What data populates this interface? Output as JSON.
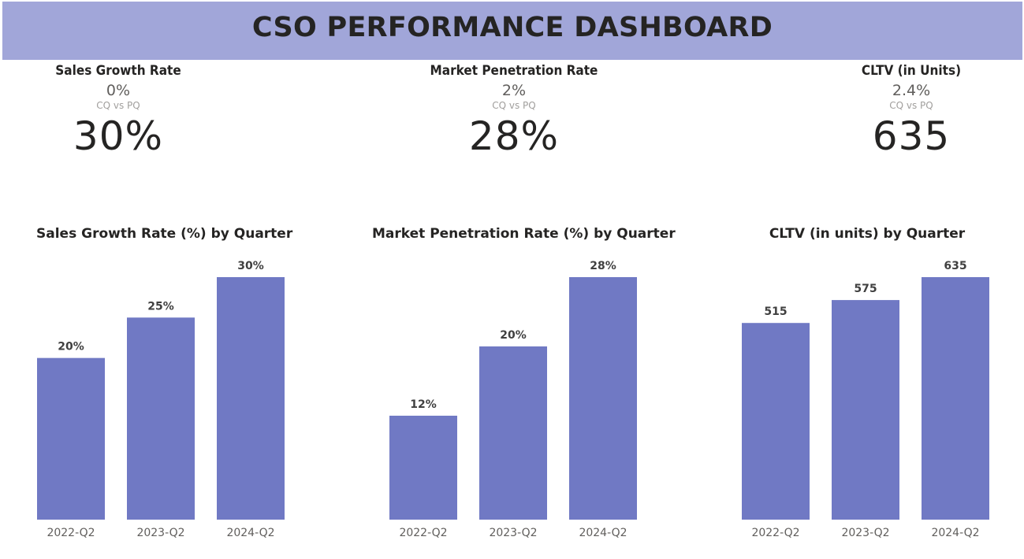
{
  "title": "CSO PERFORMANCE DASHBOARD",
  "colors": {
    "banner": "#a1a6d9",
    "bar": "#7079c4"
  },
  "kpis": [
    {
      "title": "Sales Growth Rate",
      "delta": "0%",
      "subtitle": "CQ vs PQ",
      "value": "30%"
    },
    {
      "title": "Market Penetration Rate",
      "delta": "2%",
      "subtitle": "CQ vs PQ",
      "value": "28%"
    },
    {
      "title": "CLTV (in Units)",
      "delta": "2.4%",
      "subtitle": "CQ vs PQ",
      "value": "635"
    }
  ],
  "chart_data": [
    {
      "type": "bar",
      "title": "Sales Growth Rate (%) by Quarter",
      "categories": [
        "2022-Q2",
        "2023-Q2",
        "2024-Q2"
      ],
      "values": [
        20,
        25,
        30
      ],
      "labels": [
        "20%",
        "25%",
        "30%"
      ],
      "xlabel": "",
      "ylabel": "",
      "ylim": [
        0,
        30
      ],
      "grid": false
    },
    {
      "type": "bar",
      "title": "Market Penetration Rate (%) by Quarter",
      "categories": [
        "2022-Q2",
        "2023-Q2",
        "2024-Q2"
      ],
      "values": [
        12,
        20,
        28
      ],
      "labels": [
        "12%",
        "20%",
        "28%"
      ],
      "xlabel": "",
      "ylabel": "",
      "ylim": [
        0,
        28
      ],
      "grid": false
    },
    {
      "type": "bar",
      "title": "CLTV (in units) by Quarter",
      "categories": [
        "2022-Q2",
        "2023-Q2",
        "2024-Q2"
      ],
      "values": [
        515,
        575,
        635
      ],
      "labels": [
        "515",
        "575",
        "635"
      ],
      "xlabel": "",
      "ylabel": "",
      "ylim": [
        0,
        635
      ],
      "grid": false
    }
  ]
}
